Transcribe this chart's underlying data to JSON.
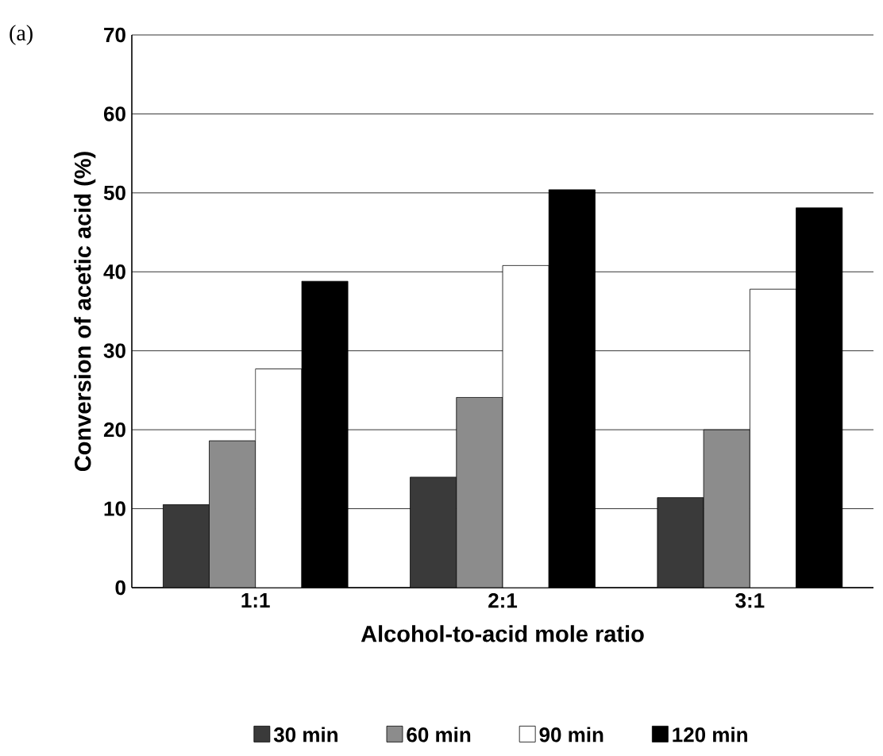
{
  "chart_data": {
    "type": "bar",
    "xlabel": "Alcohol-to-acid mole ratio",
    "ylabel": "Conversion of acetic acid (%)",
    "annotations": [
      "(a)"
    ],
    "categories": [
      "1:1",
      "2:1",
      "3:1"
    ],
    "series": [
      {
        "name": "30 min",
        "color": "#3a3a3a",
        "values": [
          10.5,
          14.0,
          11.4
        ]
      },
      {
        "name": "60 min",
        "color": "#8c8c8c",
        "values": [
          18.6,
          24.1,
          20.0
        ]
      },
      {
        "name": "90 min",
        "color": "#ffffff",
        "values": [
          27.7,
          40.8,
          37.8
        ]
      },
      {
        "name": "120 min",
        "color": "#000000",
        "values": [
          38.8,
          50.4,
          48.1
        ]
      }
    ],
    "ylim": [
      0,
      70
    ],
    "yticks": [
      0,
      10,
      20,
      30,
      40,
      50,
      60,
      70
    ],
    "grid": "y",
    "legend": "bottom"
  }
}
